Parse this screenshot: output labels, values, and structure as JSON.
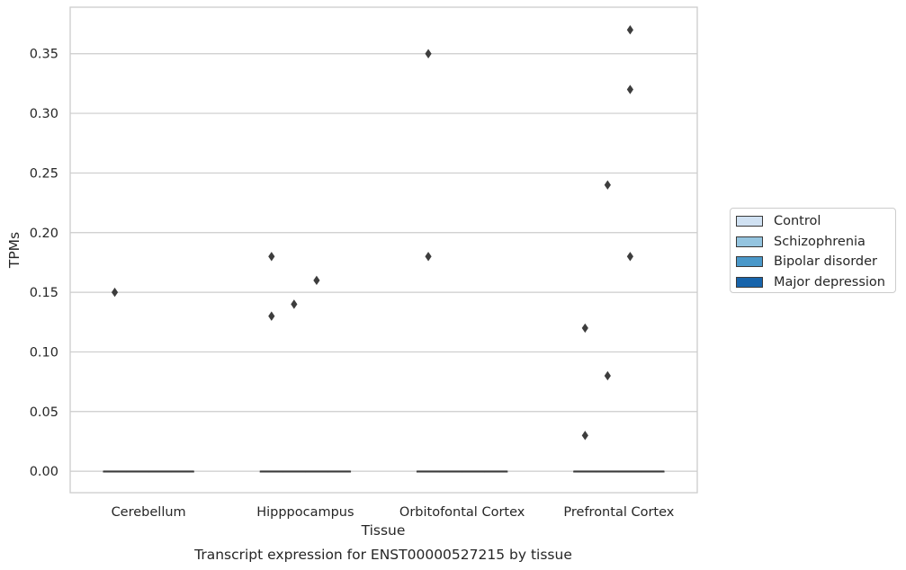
{
  "chart_data": {
    "type": "box",
    "title": "",
    "xlabel": "Tissue",
    "ylabel": "TPMs",
    "caption": "Transcript expression for ENST00000527215 by tissue",
    "categories": [
      "Cerebellum",
      "Hipppocampus",
      "Orbitofontal Cortex",
      "Prefrontal Cortex"
    ],
    "ylim": [
      -0.018,
      0.389
    ],
    "yticks": [
      "0.00",
      "0.05",
      "0.10",
      "0.15",
      "0.20",
      "0.25",
      "0.30",
      "0.35"
    ],
    "grid": "horizontal",
    "legend_position": "right",
    "series": [
      {
        "name": "Control",
        "color": "#d0e1f2",
        "boxes": [
          {
            "category": "Cerebellum",
            "median": 0.0,
            "q1": 0.0,
            "q3": 0.0,
            "outliers": [
              0.15
            ]
          },
          {
            "category": "Hipppocampus",
            "median": 0.0,
            "q1": 0.0,
            "q3": 0.0,
            "outliers": [
              0.18,
              0.13
            ]
          },
          {
            "category": "Orbitofontal Cortex",
            "median": 0.0,
            "q1": 0.0,
            "q3": 0.0,
            "outliers": [
              0.35,
              0.18
            ]
          },
          {
            "category": "Prefrontal Cortex",
            "median": 0.0,
            "q1": 0.0,
            "q3": 0.0,
            "outliers": [
              0.12,
              0.03
            ]
          }
        ]
      },
      {
        "name": "Schizophrenia",
        "color": "#94c4df",
        "boxes": [
          {
            "category": "Cerebellum",
            "median": 0.0,
            "q1": 0.0,
            "q3": 0.0,
            "outliers": []
          },
          {
            "category": "Hipppocampus",
            "median": 0.0,
            "q1": 0.0,
            "q3": 0.0,
            "outliers": [
              0.14
            ]
          },
          {
            "category": "Orbitofontal Cortex",
            "median": 0.0,
            "q1": 0.0,
            "q3": 0.0,
            "outliers": []
          },
          {
            "category": "Prefrontal Cortex",
            "median": 0.0,
            "q1": 0.0,
            "q3": 0.0,
            "outliers": [
              0.24,
              0.08
            ]
          }
        ]
      },
      {
        "name": "Bipolar disorder",
        "color": "#4a98c9",
        "boxes": [
          {
            "category": "Cerebellum",
            "median": 0.0,
            "q1": 0.0,
            "q3": 0.0,
            "outliers": []
          },
          {
            "category": "Hipppocampus",
            "median": 0.0,
            "q1": 0.0,
            "q3": 0.0,
            "outliers": [
              0.16
            ]
          },
          {
            "category": "Orbitofontal Cortex",
            "median": 0.0,
            "q1": 0.0,
            "q3": 0.0,
            "outliers": []
          },
          {
            "category": "Prefrontal Cortex",
            "median": 0.0,
            "q1": 0.0,
            "q3": 0.0,
            "outliers": [
              0.37,
              0.32,
              0.18
            ]
          }
        ]
      },
      {
        "name": "Major depression",
        "color": "#1764ab",
        "boxes": [
          {
            "category": "Cerebellum",
            "median": 0.0,
            "q1": 0.0,
            "q3": 0.0,
            "outliers": []
          },
          {
            "category": "Hipppocampus",
            "median": 0.0,
            "q1": 0.0,
            "q3": 0.0,
            "outliers": []
          },
          {
            "category": "Orbitofontal Cortex",
            "median": 0.0,
            "q1": 0.0,
            "q3": 0.0,
            "outliers": []
          },
          {
            "category": "Prefrontal Cortex",
            "median": 0.0,
            "q1": 0.0,
            "q3": 0.0,
            "outliers": []
          }
        ]
      }
    ]
  }
}
